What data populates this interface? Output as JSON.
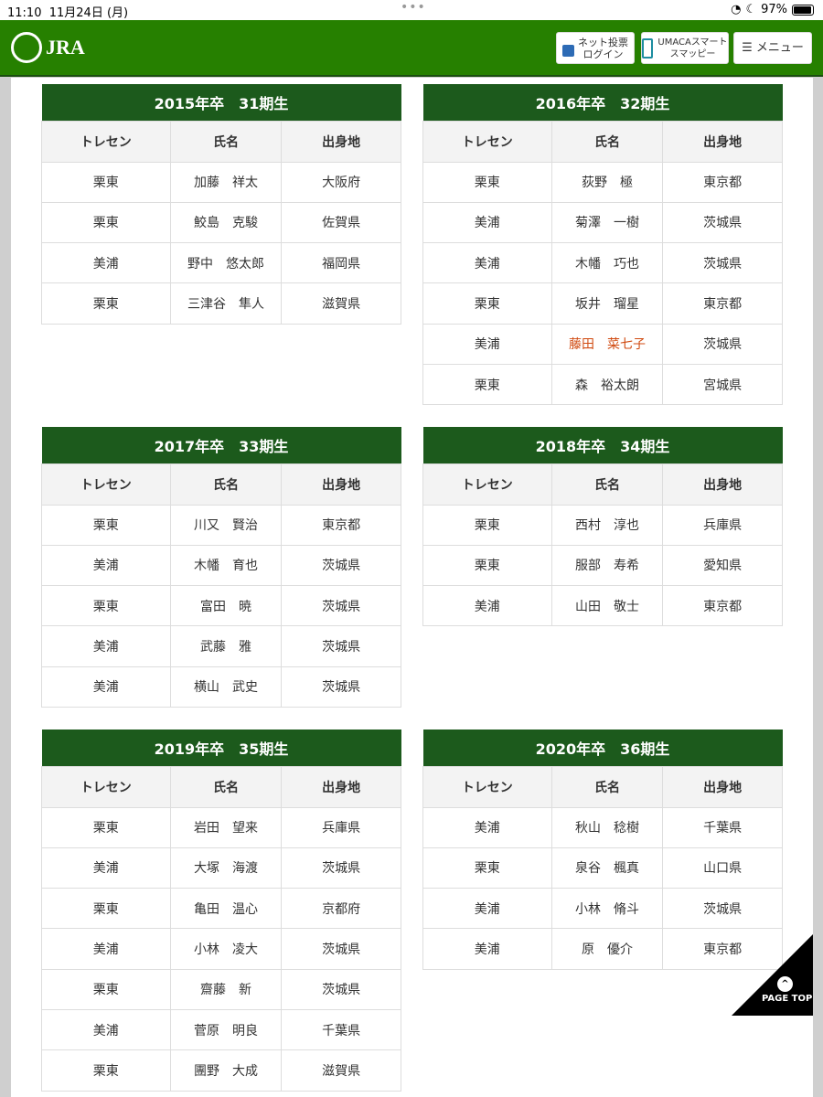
{
  "status": {
    "time": "11:10",
    "date": "11月24日 (月)",
    "battery": "97%",
    "battery_level": 0.97
  },
  "header": {
    "logo": "JRA",
    "net_vote": "ネット投票",
    "login": "ログイン",
    "umaca": "UMACAスマート",
    "smappy": "スマッピー",
    "menu": "メニュー"
  },
  "columns": [
    "トレセン",
    "氏名",
    "出身地"
  ],
  "tables": [
    {
      "title": "2015年卒　31期生",
      "rows": [
        [
          "栗東",
          "加藤　祥太",
          "大阪府"
        ],
        [
          "栗東",
          "鮫島　克駿",
          "佐賀県"
        ],
        [
          "美浦",
          "野中　悠太郎",
          "福岡県"
        ],
        [
          "栗東",
          "三津谷　隼人",
          "滋賀県"
        ]
      ]
    },
    {
      "title": "2016年卒　32期生",
      "rows": [
        [
          "栗東",
          "荻野　極",
          "東京都"
        ],
        [
          "美浦",
          "菊澤　一樹",
          "茨城県"
        ],
        [
          "美浦",
          "木幡　巧也",
          "茨城県"
        ],
        [
          "栗東",
          "坂井　瑠星",
          "東京都"
        ],
        [
          "美浦",
          "藤田　菜七子",
          "茨城県"
        ],
        [
          "栗東",
          "森　裕太朗",
          "宮城県"
        ]
      ],
      "highlight_row": 4,
      "highlight_color": "#d04a10"
    },
    {
      "title": "2017年卒　33期生",
      "rows": [
        [
          "栗東",
          "川又　賢治",
          "東京都"
        ],
        [
          "美浦",
          "木幡　育也",
          "茨城県"
        ],
        [
          "栗東",
          "富田　暁",
          "茨城県"
        ],
        [
          "美浦",
          "武藤　雅",
          "茨城県"
        ],
        [
          "美浦",
          "横山　武史",
          "茨城県"
        ]
      ]
    },
    {
      "title": "2018年卒　34期生",
      "rows": [
        [
          "栗東",
          "西村　淳也",
          "兵庫県"
        ],
        [
          "栗東",
          "服部　寿希",
          "愛知県"
        ],
        [
          "美浦",
          "山田　敬士",
          "東京都"
        ]
      ]
    },
    {
      "title": "2019年卒　35期生",
      "rows": [
        [
          "栗東",
          "岩田　望来",
          "兵庫県"
        ],
        [
          "美浦",
          "大塚　海渡",
          "茨城県"
        ],
        [
          "栗東",
          "亀田　温心",
          "京都府"
        ],
        [
          "美浦",
          "小林　凌大",
          "茨城県"
        ],
        [
          "栗東",
          "齋藤　新",
          "茨城県"
        ],
        [
          "美浦",
          "菅原　明良",
          "千葉県"
        ],
        [
          "栗東",
          "團野　大成",
          "滋賀県"
        ]
      ]
    },
    {
      "title": "2020年卒　36期生",
      "rows": [
        [
          "美浦",
          "秋山　稔樹",
          "千葉県"
        ],
        [
          "栗東",
          "泉谷　楓真",
          "山口県"
        ],
        [
          "美浦",
          "小林　脩斗",
          "茨城県"
        ],
        [
          "美浦",
          "原　優介",
          "東京都"
        ]
      ]
    }
  ],
  "page_top": "PAGE TOP",
  "colors": {
    "header_green": "#268000",
    "title_green": "#1c5a1c"
  }
}
